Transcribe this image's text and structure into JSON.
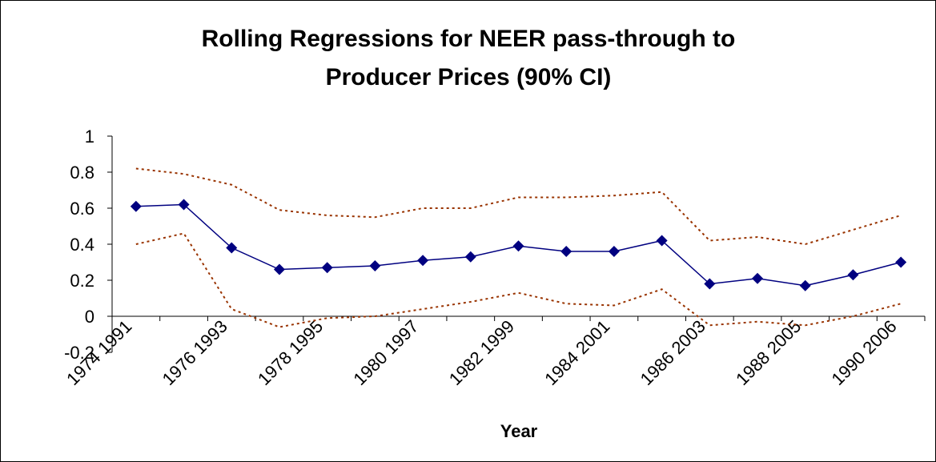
{
  "chart_data": {
    "type": "line",
    "title": [
      "Rolling Regressions for NEER pass-through to",
      "Producer Prices (90% CI)"
    ],
    "x_label": "Year",
    "categories": [
      "1974 1991",
      null,
      "1976 1993",
      null,
      "1978 1995",
      null,
      "1980 1997",
      null,
      "1982 1999",
      null,
      "1984 2001",
      null,
      "1986 2003",
      null,
      "1988 2005",
      null,
      "1990 2006"
    ],
    "series": [
      {
        "color": "#000080",
        "style": "solid",
        "marker": "diamond",
        "values": [
          0.61,
          0.62,
          0.38,
          0.26,
          0.27,
          0.28,
          0.31,
          0.33,
          0.39,
          0.36,
          0.36,
          0.42,
          0.18,
          0.21,
          0.17,
          0.23,
          0.3
        ]
      },
      {
        "color": "#993300",
        "style": "dotted",
        "values": [
          0.82,
          0.79,
          0.73,
          0.59,
          0.56,
          0.55,
          0.6,
          0.6,
          0.66,
          0.66,
          0.67,
          0.69,
          0.42,
          0.44,
          0.4,
          0.48,
          0.56
        ]
      },
      {
        "color": "#993300",
        "style": "dotted",
        "values": [
          0.4,
          0.46,
          0.04,
          -0.06,
          -0.01,
          0.0,
          0.04,
          0.08,
          0.13,
          0.07,
          0.06,
          0.15,
          -0.05,
          -0.03,
          -0.05,
          0.0,
          0.07
        ]
      }
    ],
    "ylim": [
      -0.2,
      1
    ],
    "yticks": [
      -0.2,
      0,
      0.2,
      0.4,
      0.6,
      0.8,
      1
    ],
    "grid": false
  }
}
